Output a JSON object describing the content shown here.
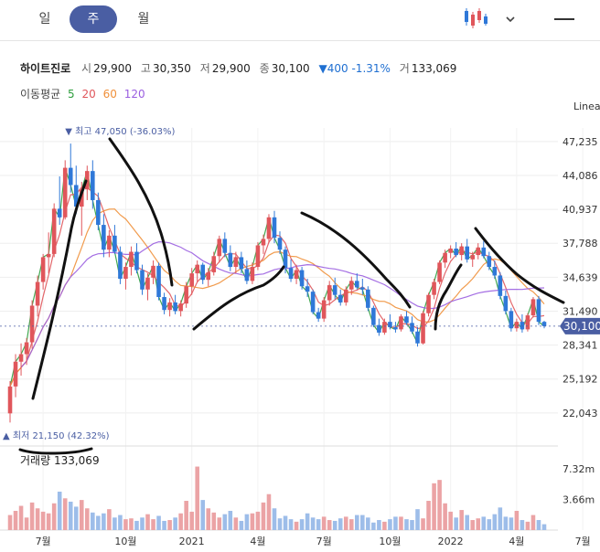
{
  "tabs": [
    {
      "label": "일"
    },
    {
      "label": "주",
      "active": true
    },
    {
      "label": "월"
    }
  ],
  "stock": {
    "name": "하이트진로",
    "open_label": "시",
    "open": "29,900",
    "high_label": "고",
    "high": "30,350",
    "low_label": "저",
    "low": "29,900",
    "close_label": "종",
    "close": "30,100",
    "change": "▼400 -1.31%",
    "volume_label": "거",
    "volume": "133,069"
  },
  "moving_average": {
    "label": "이동평균",
    "periods": [
      {
        "label": "5",
        "color": "#2e9e3e"
      },
      {
        "label": "20",
        "color": "#e0565b"
      },
      {
        "label": "60",
        "color": "#f0903a"
      },
      {
        "label": "120",
        "color": "#9a5ee0"
      }
    ]
  },
  "colors": {
    "up": "#e0565b",
    "down": "#2f78d8",
    "accent": "#4a5ea3"
  },
  "chart_data": {
    "type": "candlestick",
    "scale_label": "Linea",
    "price_axis": {
      "ticks": [
        "47,235",
        "44,086",
        "40,937",
        "37,788",
        "34,639",
        "31,490",
        "28,341",
        "25,192",
        "22,043"
      ],
      "ylim": [
        20500,
        48500
      ]
    },
    "current_price": "30,100",
    "high_annotation": "최고 47,050 (-36.03%)",
    "low_annotation": "최저 21,150 (42.32%)",
    "x_ticks": [
      "7월",
      "10월",
      "2021",
      "4월",
      "7월",
      "10월",
      "2022",
      "4월",
      "7월"
    ],
    "volume": {
      "label": "거래량",
      "value": "133,069",
      "ticks": [
        "7.32m",
        "3.66m"
      ],
      "ylim": [
        0,
        9300000
      ]
    },
    "candles": [
      [
        22000,
        25000,
        21150,
        24500
      ],
      [
        24500,
        27500,
        23500,
        26800
      ],
      [
        26800,
        28500,
        25500,
        27500
      ],
      [
        27500,
        29000,
        26500,
        28600
      ],
      [
        28600,
        32500,
        28000,
        32000
      ],
      [
        32000,
        34800,
        31000,
        34200
      ],
      [
        34200,
        36800,
        33500,
        36500
      ],
      [
        36500,
        38800,
        35000,
        36800
      ],
      [
        36800,
        41500,
        36500,
        41000
      ],
      [
        41000,
        44000,
        39500,
        40200
      ],
      [
        40200,
        45500,
        40000,
        44800
      ],
      [
        44800,
        47050,
        42500,
        43200
      ],
      [
        43200,
        45000,
        40500,
        41200
      ],
      [
        41200,
        43500,
        38500,
        42800
      ],
      [
        42800,
        45000,
        41800,
        44500
      ],
      [
        44500,
        45500,
        41000,
        41800
      ],
      [
        41800,
        42500,
        39000,
        39500
      ],
      [
        39500,
        40500,
        36500,
        37200
      ],
      [
        37200,
        39000,
        36500,
        38500
      ],
      [
        38500,
        39500,
        36800,
        37000
      ],
      [
        37000,
        37500,
        34000,
        34500
      ],
      [
        34500,
        36000,
        33500,
        35600
      ],
      [
        35600,
        37500,
        34800,
        37000
      ],
      [
        37000,
        37800,
        35000,
        35300
      ],
      [
        35300,
        35800,
        33000,
        33500
      ],
      [
        33500,
        35000,
        32500,
        34600
      ],
      [
        34600,
        36200,
        34000,
        35700
      ],
      [
        35700,
        36000,
        32500,
        32800
      ],
      [
        32800,
        33200,
        31200,
        31600
      ],
      [
        31600,
        32700,
        31000,
        32300
      ],
      [
        32300,
        33000,
        31200,
        31500
      ],
      [
        31500,
        32500,
        31000,
        32200
      ],
      [
        32200,
        34200,
        31800,
        33800
      ],
      [
        33800,
        35500,
        33000,
        35000
      ],
      [
        35000,
        36200,
        34200,
        35800
      ],
      [
        35800,
        36000,
        34000,
        34400
      ],
      [
        34400,
        35500,
        33800,
        35100
      ],
      [
        35100,
        37000,
        34800,
        36600
      ],
      [
        36600,
        38500,
        36000,
        38200
      ],
      [
        38200,
        38800,
        36500,
        36900
      ],
      [
        36900,
        37600,
        35200,
        35600
      ],
      [
        35600,
        37000,
        35000,
        36500
      ],
      [
        36500,
        37000,
        35000,
        35400
      ],
      [
        35400,
        36200,
        34000,
        34300
      ],
      [
        34300,
        36000,
        34000,
        35600
      ],
      [
        35600,
        37900,
        35300,
        37600
      ],
      [
        37600,
        38600,
        36800,
        38200
      ],
      [
        38200,
        40500,
        37800,
        40200
      ],
      [
        40200,
        40800,
        37800,
        38300
      ],
      [
        38300,
        38900,
        36800,
        37200
      ],
      [
        37200,
        37500,
        35000,
        35500
      ],
      [
        35500,
        36300,
        34200,
        34500
      ],
      [
        34500,
        35800,
        34000,
        35300
      ],
      [
        35300,
        35600,
        33500,
        33800
      ],
      [
        33800,
        34500,
        32800,
        33300
      ],
      [
        33300,
        33500,
        31200,
        31400
      ],
      [
        31400,
        31800,
        30500,
        30800
      ],
      [
        30800,
        32800,
        30500,
        32500
      ],
      [
        32500,
        34300,
        32000,
        33900
      ],
      [
        33900,
        34600,
        32600,
        33000
      ],
      [
        33000,
        33500,
        32000,
        32300
      ],
      [
        32300,
        33800,
        32000,
        33500
      ],
      [
        33500,
        34700,
        33000,
        34300
      ],
      [
        34300,
        35000,
        33500,
        33700
      ],
      [
        33700,
        34500,
        33000,
        33500
      ],
      [
        33500,
        33800,
        31500,
        31800
      ],
      [
        31800,
        32000,
        30000,
        30200
      ],
      [
        30200,
        30800,
        29200,
        29500
      ],
      [
        29500,
        30800,
        29300,
        30500
      ],
      [
        30500,
        31200,
        29800,
        30000
      ],
      [
        30000,
        30500,
        29500,
        29800
      ],
      [
        29800,
        31200,
        29600,
        31000
      ],
      [
        31000,
        31500,
        30200,
        30400
      ],
      [
        30400,
        31000,
        29400,
        29600
      ],
      [
        29600,
        30000,
        28200,
        28500
      ],
      [
        28500,
        31500,
        28400,
        31300
      ],
      [
        31300,
        33200,
        31000,
        33000
      ],
      [
        33000,
        34500,
        32600,
        34200
      ],
      [
        34200,
        36200,
        34000,
        36000
      ],
      [
        36000,
        37200,
        35500,
        36900
      ],
      [
        36900,
        37600,
        36400,
        37300
      ],
      [
        37300,
        37900,
        36500,
        36700
      ],
      [
        36700,
        37800,
        36200,
        37500
      ],
      [
        37500,
        38200,
        36000,
        36300
      ],
      [
        36300,
        37000,
        35600,
        36700
      ],
      [
        36700,
        37800,
        36300,
        37400
      ],
      [
        37400,
        38000,
        36400,
        36600
      ],
      [
        36600,
        37000,
        35300,
        35600
      ],
      [
        35600,
        36200,
        34500,
        34800
      ],
      [
        34800,
        35100,
        32600,
        32900
      ],
      [
        32900,
        33400,
        31200,
        31500
      ],
      [
        31500,
        31800,
        29600,
        29900
      ],
      [
        29900,
        30800,
        29600,
        30500
      ],
      [
        30500,
        31200,
        29500,
        29800
      ],
      [
        29800,
        31300,
        29600,
        31100
      ],
      [
        31100,
        32800,
        30900,
        32600
      ],
      [
        32600,
        32900,
        30200,
        30500
      ],
      [
        30500,
        30600,
        29900,
        30100
      ]
    ],
    "volumes": [
      1800000,
      2300000,
      2900000,
      1500000,
      3300000,
      2600000,
      2200000,
      2000000,
      3200000,
      4600000,
      3800000,
      3400000,
      2800000,
      3600000,
      2600000,
      2100000,
      1700000,
      2000000,
      2500000,
      1500000,
      1800000,
      1300000,
      1400000,
      1100000,
      1500000,
      1900000,
      1300000,
      1700000,
      1100000,
      1200000,
      1500000,
      2000000,
      3500000,
      2200000,
      7600000,
      3600000,
      2600000,
      2100000,
      1500000,
      1900000,
      2300000,
      1500000,
      1100000,
      1900000,
      2000000,
      2200000,
      3300000,
      4300000,
      2600000,
      1400000,
      1700000,
      1300000,
      1000000,
      1300000,
      2000000,
      1500000,
      1300000,
      1600000,
      1200000,
      1100000,
      1400000,
      1600000,
      1300000,
      1800000,
      1800000,
      1500000,
      900000,
      1200000,
      1000000,
      1300000,
      1600000,
      1600000,
      1300000,
      1200000,
      2500000,
      1400000,
      3500000,
      5600000,
      6000000,
      3200000,
      2200000,
      1500000,
      2400000,
      1800000,
      1200000,
      1400000,
      1600000,
      1300000,
      1900000,
      2700000,
      1600000,
      1500000,
      2300000,
      1200000,
      1000000,
      1800000,
      1200000,
      700000
    ]
  }
}
